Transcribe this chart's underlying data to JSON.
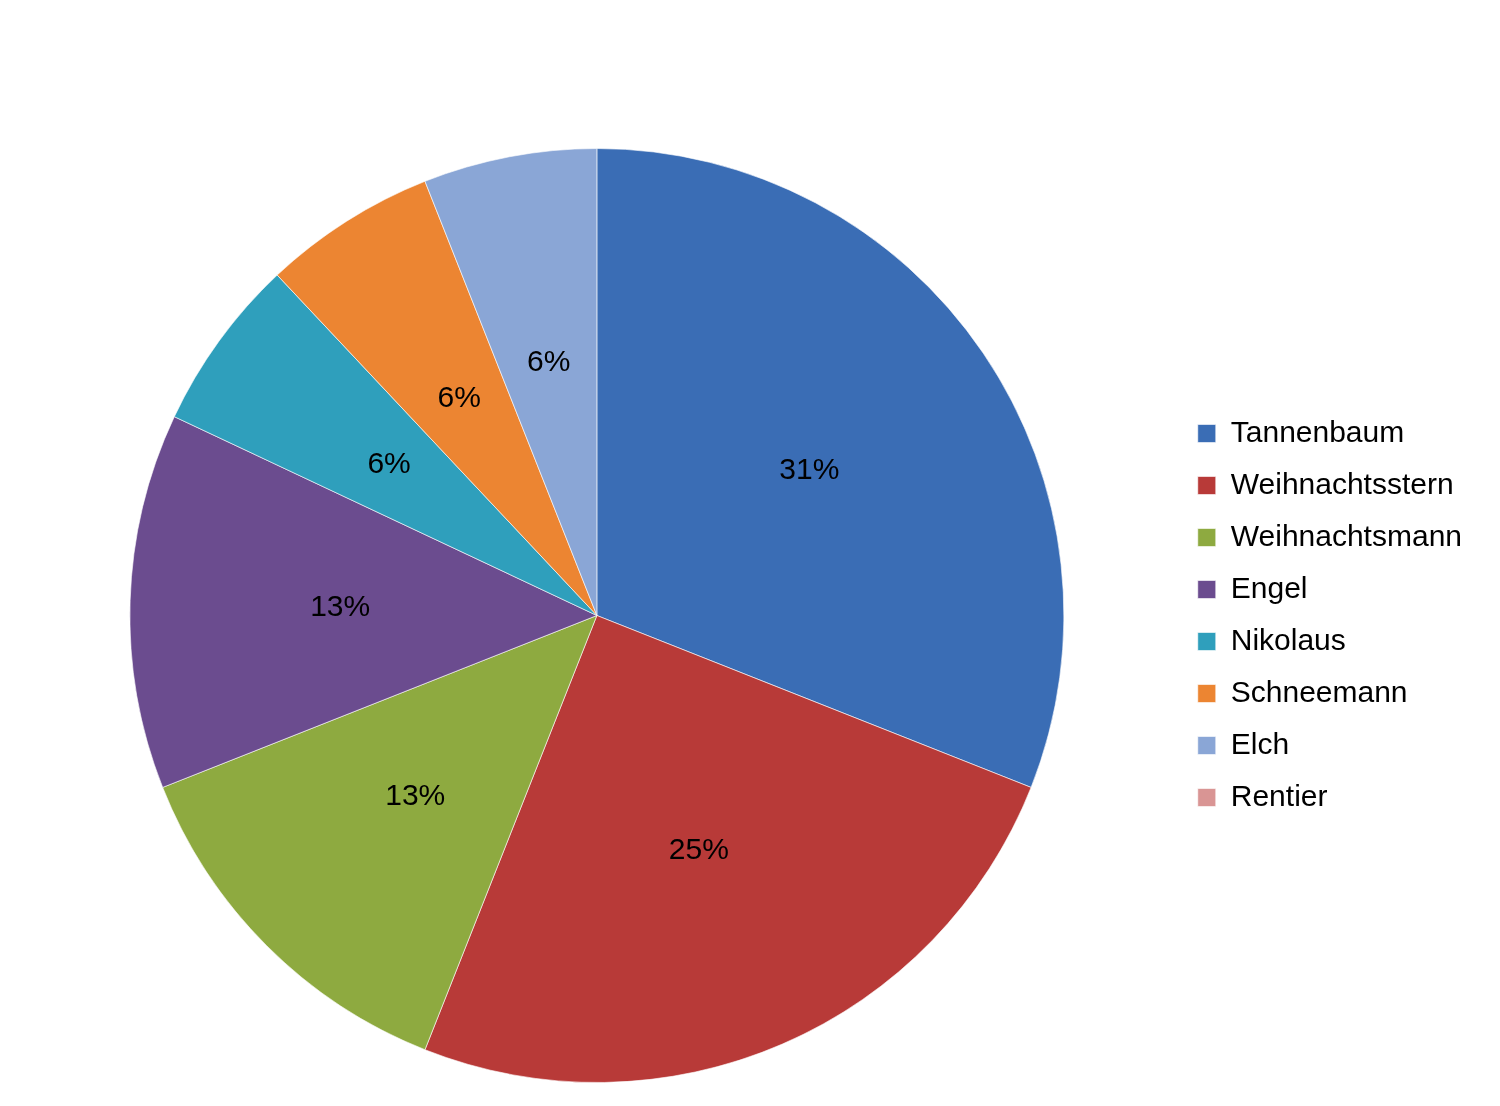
{
  "chart_data": {
    "type": "pie",
    "categories": [
      "Tannenbaum",
      "Weihnachtsstern",
      "Weihnachtsmann",
      "Engel",
      "Nikolaus",
      "Schneemann",
      "Elch",
      "Rentier"
    ],
    "values": [
      31,
      25,
      13,
      13,
      6,
      6,
      6,
      0
    ],
    "colors": [
      "#3a6db5",
      "#b83a38",
      "#8eaa40",
      "#6b4c8f",
      "#2f9fbc",
      "#ec8532",
      "#8aa6d6",
      "#d99594"
    ],
    "value_labels": [
      "31%",
      "25%",
      "13%",
      "13%",
      "6%",
      "6%",
      "6%",
      null
    ],
    "legend": "right"
  }
}
